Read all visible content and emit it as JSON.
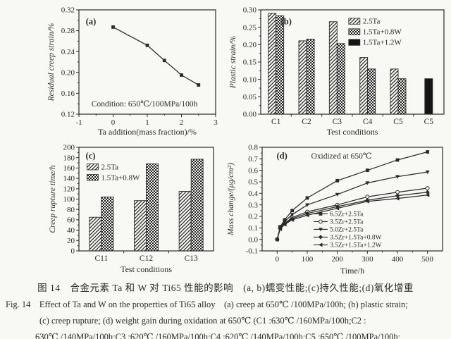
{
  "caption": {
    "zh": "图 14　合金元素 Ta 和 W 对 Ti65 性能的影响　(a, b)蠕变性能;(c)持久性能;(d)氧化增重",
    "en1": "Fig. 14　Effect of Ta and W on the properties of Ti65 alloy　(a) creep at 650℃ /100MPa/100h; (b) plastic strain;",
    "en2": "(c) creep rupture; (d) weight gain during oxidation at 650℃ (C1 :630℃ /160MPa/100h;C2 :",
    "en3": "630℃ /140MPa/100h;C3 :620℃ /160MPa/100h;C4 :620℃ /140MPa/100h;C5 :650℃ /100MPa/100h;"
  },
  "colors": {
    "ink": "#2a2a2a",
    "paper": "#f8f8f5",
    "solid_bar": "#151515"
  },
  "chart_data": [
    {
      "id": "a",
      "type": "line",
      "panel_label": "(a)",
      "xlabel": "Ta addition(mass fraction)/%",
      "ylabel": "Residual creep strain/%",
      "annotation": "Condition: 650℃/100MPa/100h",
      "xlim": [
        -1,
        3
      ],
      "ylim": [
        0.12,
        0.32
      ],
      "xticks": [
        "-1",
        "0",
        "1",
        "2",
        "3"
      ],
      "yticks": [
        "0.12",
        "0.16",
        "0.20",
        "0.24",
        "0.28",
        "0.32"
      ],
      "x": [
        0,
        1,
        1.5,
        2,
        2.5
      ],
      "series": [
        {
          "name": "residual creep strain",
          "marker": "square-filled",
          "values": [
            0.287,
            0.252,
            0.223,
            0.195,
            0.176
          ]
        }
      ],
      "legend": false,
      "grid": false
    },
    {
      "id": "b",
      "type": "bar",
      "panel_label": "(b)",
      "xlabel": "Test conditions",
      "ylabel": "Plastic strain/%",
      "ylim": [
        0,
        0.3
      ],
      "yticks": [
        "0.00",
        "0.05",
        "0.10",
        "0.15",
        "0.20",
        "0.25",
        "0.30"
      ],
      "categories": [
        "C1",
        "C2",
        "C3",
        "C4",
        "C5",
        "C5"
      ],
      "series": [
        {
          "name": "2.5Ta",
          "pattern": "diagonal",
          "values": [
            0.29,
            0.211,
            0.266,
            0.163,
            0.13,
            null
          ]
        },
        {
          "name": "1.5Ta+0.8W",
          "pattern": "cross",
          "values": [
            0.283,
            0.216,
            0.203,
            0.13,
            0.102,
            null
          ]
        },
        {
          "name": "1.5Ta+1.2W",
          "pattern": "solid",
          "values": [
            null,
            null,
            null,
            null,
            null,
            0.102
          ]
        }
      ],
      "legend": true,
      "legend_position": "top-right",
      "grid": false
    },
    {
      "id": "c",
      "type": "bar",
      "panel_label": "(c)",
      "xlabel": "Test conditions",
      "ylabel": "Creep rupture time/h",
      "ylim": [
        0,
        200
      ],
      "yticks": [
        "0",
        "20",
        "40",
        "60",
        "80",
        "100",
        "120",
        "140",
        "160",
        "180",
        "200"
      ],
      "categories": [
        "C11",
        "C12",
        "C13"
      ],
      "series": [
        {
          "name": "2.5Ta",
          "pattern": "diagonal",
          "values": [
            65,
            97,
            115
          ]
        },
        {
          "name": "1.5Ta+0.8W",
          "pattern": "cross",
          "values": [
            104,
            168,
            177
          ]
        }
      ],
      "legend": true,
      "legend_position": "upper-left",
      "grid": false
    },
    {
      "id": "d",
      "type": "line",
      "panel_label": "(d)",
      "annotation": "Oxidized at 650℃",
      "xlabel": "Time/h",
      "ylabel": "Mass change/(μg/cm²)",
      "xlim": [
        -50,
        550
      ],
      "ylim": [
        -0.1,
        0.8
      ],
      "xticks": [
        "0",
        "100",
        "200",
        "300",
        "400",
        "500"
      ],
      "yticks": [
        "-0.1",
        "0.0",
        "0.1",
        "0.2",
        "0.3",
        "0.4",
        "0.5",
        "0.6",
        "0.7",
        "0.8"
      ],
      "x": [
        0,
        10,
        25,
        50,
        100,
        200,
        300,
        400,
        500
      ],
      "series": [
        {
          "name": "6.5Zr+2.5Ta",
          "marker": "square-filled",
          "values": [
            0,
            0.11,
            0.17,
            0.25,
            0.36,
            0.51,
            0.6,
            0.69,
            0.76
          ]
        },
        {
          "name": "3.5Zr+2.5Ta",
          "marker": "circle-open",
          "values": [
            0,
            0.1,
            0.14,
            0.19,
            0.24,
            0.3,
            0.37,
            0.41,
            0.445
          ]
        },
        {
          "name": "5.0Zr+2.5Ta",
          "marker": "triangle-down-filled",
          "values": [
            0,
            0.105,
            0.155,
            0.215,
            0.3,
            0.39,
            0.49,
            0.545,
            0.585
          ]
        },
        {
          "name": "3.5Zr+1.5Ta+0.8W",
          "marker": "diamond-filled",
          "values": [
            0,
            0.095,
            0.135,
            0.18,
            0.225,
            0.285,
            0.34,
            0.38,
            0.41
          ]
        },
        {
          "name": "3.5Zr+1.5Ta+1.2W",
          "marker": "triangle-left-filled",
          "values": [
            0,
            0.09,
            0.13,
            0.17,
            0.21,
            0.27,
            0.33,
            0.355,
            0.385
          ]
        }
      ],
      "legend": true,
      "legend_position": "bottom-right",
      "grid": false
    }
  ]
}
